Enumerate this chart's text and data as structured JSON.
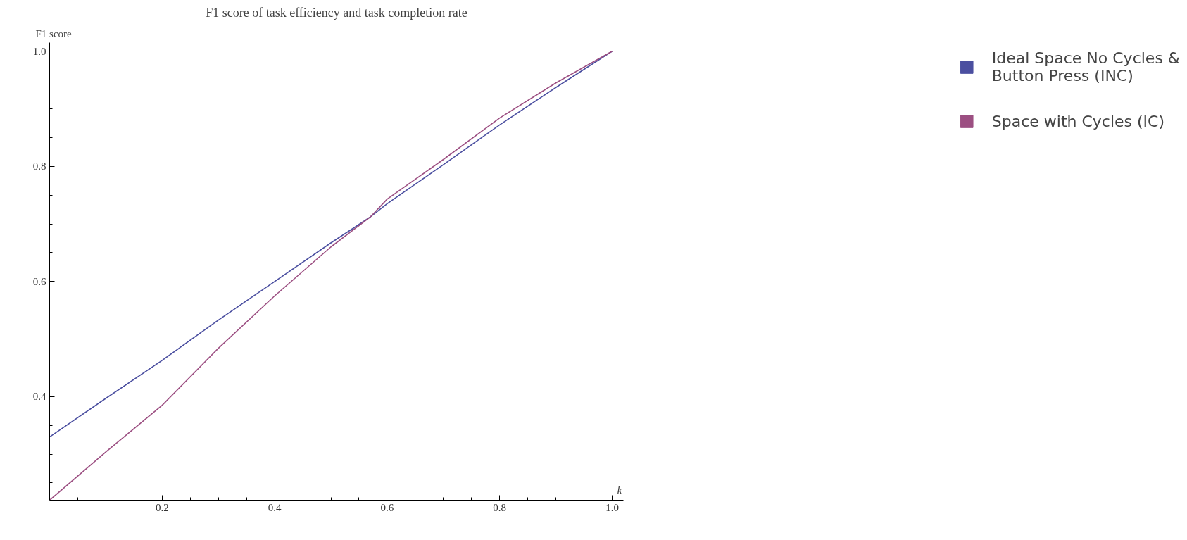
{
  "chart_data": {
    "type": "line",
    "title": "F1 score of task efficiency and task completion rate",
    "xlabel": "k",
    "ylabel": "F1 score",
    "x": [
      0,
      0.1,
      0.2,
      0.3,
      0.4,
      0.5,
      0.57,
      0.6,
      0.7,
      0.8,
      0.9,
      1.0
    ],
    "series": [
      {
        "name": "Ideal Space No Cycles & Button Press (INC)",
        "color": "#4b4fa0",
        "values": [
          0.33,
          0.397,
          0.463,
          0.533,
          0.6,
          0.667,
          0.712,
          0.735,
          0.803,
          0.872,
          0.937,
          1.0
        ]
      },
      {
        "name": "Space with Cycles (IC)",
        "color": "#9c4f82",
        "values": [
          0.22,
          0.304,
          0.385,
          0.484,
          0.575,
          0.66,
          0.712,
          0.743,
          0.812,
          0.884,
          0.945,
          1.0
        ]
      }
    ],
    "xlim": [
      0,
      1.02
    ],
    "ylim": [
      0.22,
      1.015
    ],
    "xticks": [
      {
        "value": 0.05,
        "label": null
      },
      {
        "value": 0.1,
        "label": null
      },
      {
        "value": 0.15,
        "label": null
      },
      0.2,
      {
        "value": 0.25,
        "label": null
      },
      {
        "value": 0.3,
        "label": null
      },
      {
        "value": 0.35,
        "label": null
      },
      0.4,
      {
        "value": 0.45,
        "label": null
      },
      {
        "value": 0.5,
        "label": null
      },
      {
        "value": 0.55,
        "label": null
      },
      0.6,
      {
        "value": 0.65,
        "label": null
      },
      {
        "value": 0.7,
        "label": null
      },
      {
        "value": 0.75,
        "label": null
      },
      0.8,
      {
        "value": 0.85,
        "label": null
      },
      {
        "value": 0.9,
        "label": null
      },
      {
        "value": 0.95,
        "label": null
      },
      {
        "value": 1.0,
        "label": "1.0"
      }
    ],
    "yticks": [
      {
        "value": 0.25,
        "label": null
      },
      {
        "value": 0.3,
        "label": null
      },
      {
        "value": 0.35,
        "label": null
      },
      0.4,
      {
        "value": 0.45,
        "label": null
      },
      {
        "value": 0.5,
        "label": null
      },
      {
        "value": 0.55,
        "label": null
      },
      0.6,
      {
        "value": 0.65,
        "label": null
      },
      {
        "value": 0.7,
        "label": null
      },
      {
        "value": 0.75,
        "label": null
      },
      0.8,
      {
        "value": 0.85,
        "label": null
      },
      {
        "value": 0.9,
        "label": null
      },
      {
        "value": 0.95,
        "label": null
      },
      {
        "value": 1.0,
        "label": "1.0"
      }
    ],
    "legend": "right",
    "grid": false,
    "marker": "none",
    "line_style": "solid"
  }
}
